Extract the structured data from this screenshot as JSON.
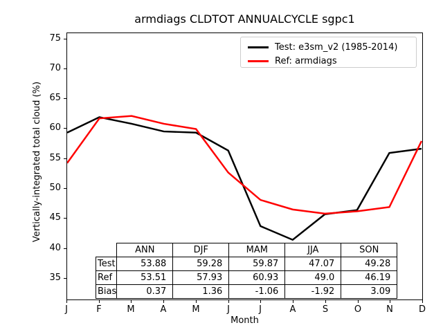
{
  "figure": {
    "title": "armdiags CLDTOT ANNUALCYCLE sgpc1",
    "xlabel": "Month",
    "ylabel": "Vertically-integrated total cloud (%)"
  },
  "legend": {
    "entries": [
      {
        "label": "Test: e3sm_v2 (1985-2014)",
        "color": "#000000"
      },
      {
        "label": "Ref: armdiags",
        "color": "#ff0000"
      }
    ]
  },
  "chart_data": {
    "type": "line",
    "title": "armdiags CLDTOT ANNUALCYCLE sgpc1",
    "xlabel": "Month",
    "ylabel": "Vertically-integrated total cloud (%)",
    "x_tick_labels": [
      "J",
      "F",
      "M",
      "A",
      "M",
      "J",
      "J",
      "A",
      "S",
      "O",
      "N",
      "D"
    ],
    "y_ticks": [
      35,
      40,
      45,
      50,
      55,
      60,
      65,
      70,
      75
    ],
    "ylim": [
      31.4,
      76.0
    ],
    "grid": false,
    "legend_position": "upper right",
    "line_width": 2.5,
    "series": [
      {
        "name": "Test: e3sm_v2 (1985-2014)",
        "color": "#000000",
        "values": [
          59.3,
          61.9,
          60.8,
          59.5,
          59.3,
          56.3,
          43.6,
          41.3,
          45.6,
          46.3,
          55.9,
          56.6
        ]
      },
      {
        "name": "Ref: armdiags",
        "color": "#ff0000",
        "values": [
          54.2,
          61.7,
          62.1,
          60.8,
          59.9,
          52.6,
          48.0,
          46.4,
          45.7,
          46.1,
          46.8,
          57.9
        ]
      }
    ],
    "table": {
      "column_headers": [
        "ANN",
        "DJF",
        "MAM",
        "JJA",
        "SON"
      ],
      "rows": [
        {
          "label": "Test",
          "values": [
            "53.88",
            "59.28",
            "59.87",
            "47.07",
            "49.28"
          ]
        },
        {
          "label": "Ref",
          "values": [
            "53.51",
            "57.93",
            "60.93",
            "49.0",
            "46.19"
          ]
        },
        {
          "label": "Bias",
          "values": [
            "0.37",
            "1.36",
            "-1.06",
            "-1.92",
            "3.09"
          ]
        }
      ]
    }
  }
}
